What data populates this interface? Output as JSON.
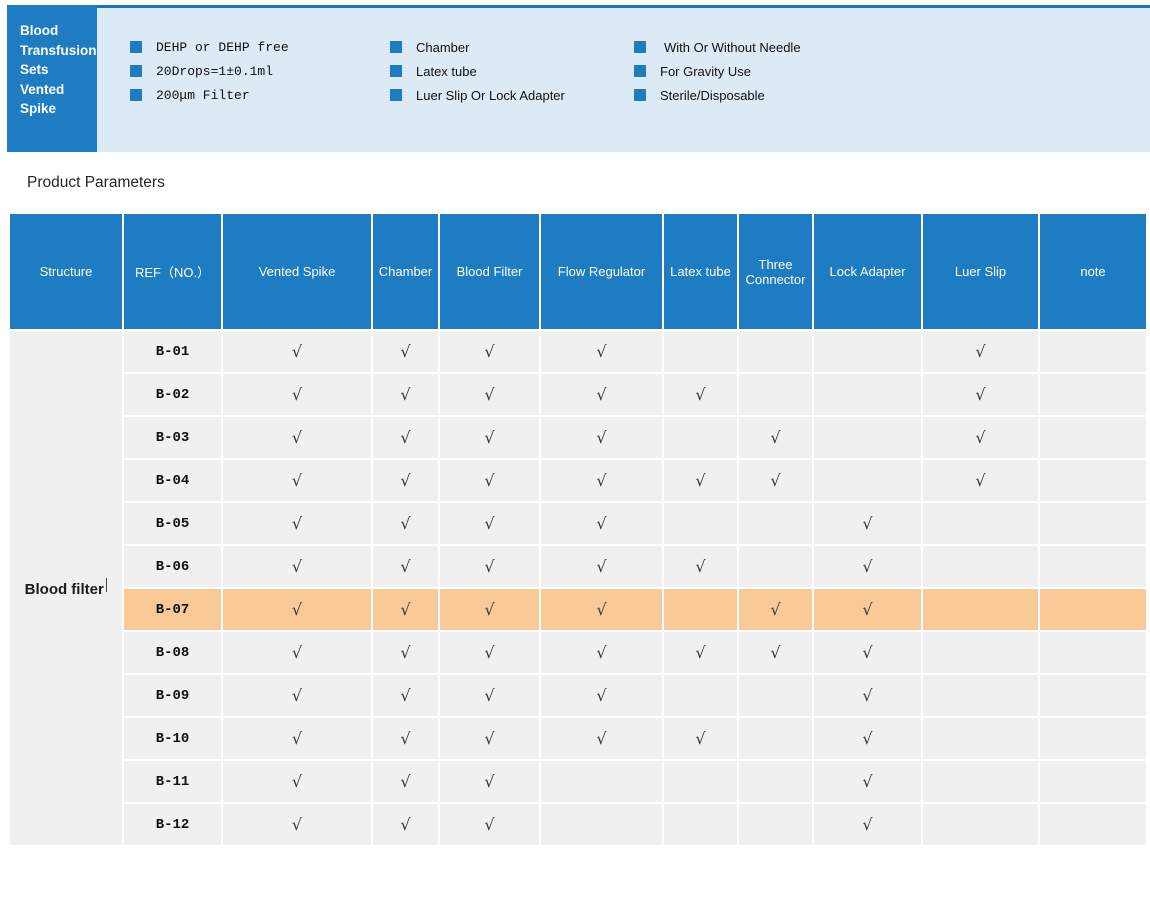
{
  "hero": {
    "title_lines": [
      "Blood",
      "Transfusion",
      "Sets",
      "Vented",
      "Spike"
    ],
    "feature_columns": [
      {
        "items": [
          "DEHP or DEHP free",
          "20Drops=1±0.1ml",
          "200μm Filter"
        ]
      },
      {
        "items": [
          "Chamber",
          "Latex tube",
          "Luer Slip Or Lock Adapter"
        ]
      },
      {
        "items": [
          "With Or Without Needle",
          "For Gravity Use",
          "Sterile/Disposable"
        ]
      }
    ]
  },
  "section_title": "Product Parameters",
  "table": {
    "headers": [
      "Structure",
      "REF（NO.）",
      "Vented Spike",
      "Chamber",
      "Blood Filter",
      "Flow Regulator",
      "Latex tube",
      "Three Connector",
      "Lock Adapter",
      "Luer Slip",
      "note"
    ],
    "column_keys": [
      "structure",
      "ref",
      "vented_spike",
      "chamber",
      "blood_filter",
      "flow_regulator",
      "latex_tube",
      "three_connector",
      "lock_adapter",
      "luer_slip",
      "note"
    ],
    "structure_label": "Blood filter",
    "check_symbol": "√",
    "rows": [
      {
        "ref": "B-01",
        "cells": [
          "√",
          "√",
          "√",
          "√",
          "",
          "",
          "",
          "√",
          ""
        ],
        "highlight": false
      },
      {
        "ref": "B-02",
        "cells": [
          "√",
          "√",
          "√",
          "√",
          "√",
          "",
          "",
          "√",
          ""
        ],
        "highlight": false
      },
      {
        "ref": "B-03",
        "cells": [
          "√",
          "√",
          "√",
          "√",
          "",
          "√",
          "",
          "√",
          ""
        ],
        "highlight": false
      },
      {
        "ref": "B-04",
        "cells": [
          "√",
          "√",
          "√",
          "√",
          "√",
          "√",
          "",
          "√",
          ""
        ],
        "highlight": false
      },
      {
        "ref": "B-05",
        "cells": [
          "√",
          "√",
          "√",
          "√",
          "",
          "",
          "√",
          "",
          ""
        ],
        "highlight": false
      },
      {
        "ref": "B-06",
        "cells": [
          "√",
          "√",
          "√",
          "√",
          "√",
          "",
          "√",
          "",
          ""
        ],
        "highlight": false
      },
      {
        "ref": "B-07",
        "cells": [
          "√",
          "√",
          "√",
          "√",
          "",
          "√",
          "√",
          "",
          ""
        ],
        "highlight": true
      },
      {
        "ref": "B-08",
        "cells": [
          "√",
          "√",
          "√",
          "√",
          "√",
          "√",
          "√",
          "",
          ""
        ],
        "highlight": false
      },
      {
        "ref": "B-09",
        "cells": [
          "√",
          "√",
          "√",
          "√",
          "",
          "",
          "√",
          "",
          ""
        ],
        "highlight": false
      },
      {
        "ref": "B-10",
        "cells": [
          "√",
          "√",
          "√",
          "√",
          "√",
          "",
          "√",
          "",
          ""
        ],
        "highlight": false
      },
      {
        "ref": "B-11",
        "cells": [
          "√",
          "√",
          "√",
          "",
          "",
          "",
          "√",
          "",
          ""
        ],
        "highlight": false
      },
      {
        "ref": "B-12",
        "cells": [
          "√",
          "√",
          "√",
          "",
          "",
          "",
          "√",
          "",
          ""
        ],
        "highlight": false
      }
    ]
  },
  "colors": {
    "primary_blue": "#1e7cc2",
    "banner_background": "#dceaf6",
    "banner_top_border": "#1d72bd",
    "cell_background": "#f0f0f0",
    "highlight_orange": "#fac998",
    "check_color": "#3a3a3a"
  }
}
